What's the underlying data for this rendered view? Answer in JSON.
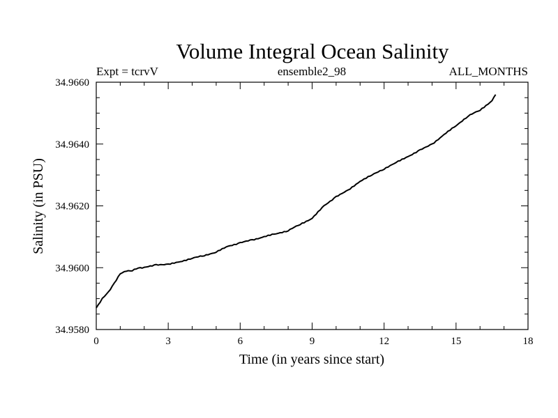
{
  "chart_data": {
    "type": "line",
    "title": "Volume Integral Ocean Salinity",
    "subtitle_left": "Expt = tcrvV",
    "subtitle_center": "ensemble2_98",
    "subtitle_right": "ALL_MONTHS",
    "xlabel": "Time (in years since start)",
    "ylabel": "Salinity (in PSU)",
    "xlim": [
      0,
      18
    ],
    "ylim": [
      34.958,
      34.966
    ],
    "xticks": [
      0,
      3,
      6,
      9,
      12,
      15,
      18
    ],
    "xtick_labels": [
      "0",
      "3",
      "6",
      "9",
      "12",
      "15",
      "18"
    ],
    "yticks": [
      34.958,
      34.96,
      34.962,
      34.964,
      34.966
    ],
    "ytick_labels": [
      "34.9580",
      "34.9600",
      "34.9620",
      "34.9640",
      "34.9660"
    ],
    "grid": false,
    "line_color": "#000000",
    "series": [
      {
        "x": [
          0,
          0.25,
          0.5,
          0.75,
          1.0,
          1.25,
          1.5,
          1.75,
          2.0,
          2.5,
          3.0,
          3.5,
          4.0,
          4.5,
          5.0,
          5.5,
          6.0,
          6.5,
          7.0,
          7.5,
          8.0,
          8.5,
          9.0,
          9.5,
          10.0,
          10.5,
          11.0,
          11.5,
          12.0,
          12.5,
          13.0,
          13.5,
          14.0,
          14.5,
          15.0,
          15.5,
          16.0,
          16.5,
          16.65
        ],
        "y": [
          34.9587,
          34.959,
          34.9592,
          34.9595,
          34.9598,
          34.9599,
          34.9599,
          34.96,
          34.96,
          34.9601,
          34.9601,
          34.9602,
          34.9603,
          34.9604,
          34.9605,
          34.9607,
          34.9608,
          34.9609,
          34.961,
          34.9611,
          34.9612,
          34.9614,
          34.9616,
          34.962,
          34.9623,
          34.9625,
          34.9628,
          34.963,
          34.9632,
          34.9634,
          34.9636,
          34.9638,
          34.964,
          34.9643,
          34.9646,
          34.9649,
          34.9651,
          34.9654,
          34.9656
        ]
      }
    ]
  }
}
